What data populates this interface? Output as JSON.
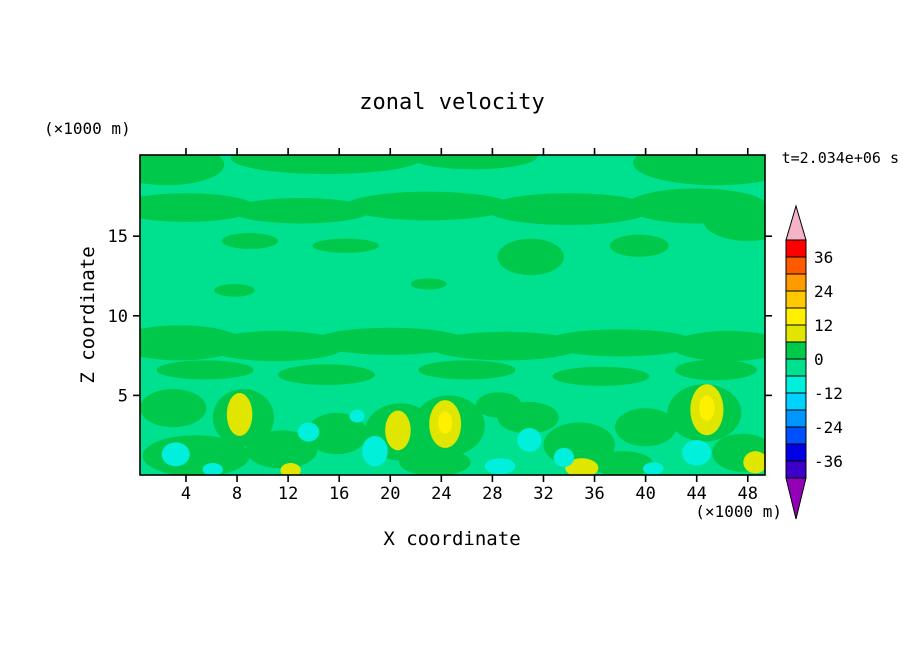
{
  "chart_data": {
    "type": "heatmap",
    "subtype": "filled-contour",
    "title": "zonal velocity",
    "time_label": "t=2.034e+06 s",
    "contour_interval": 6,
    "x_axis": {
      "label": "X coordinate",
      "unit": "(×1000 m)",
      "ticks": [
        4,
        8,
        12,
        16,
        20,
        24,
        28,
        32,
        36,
        40,
        44,
        48
      ],
      "range": [
        0.4,
        49.35
      ]
    },
    "z_axis": {
      "label": "Z coordinate",
      "unit": "(×1000 m)",
      "ticks": [
        5,
        10,
        15
      ],
      "range": [
        0,
        20.1
      ]
    },
    "colorbar": {
      "tick_labels": [
        "36",
        "24",
        "12",
        "0",
        "-12",
        "-24",
        "-36"
      ],
      "over_color": "#F5B3C8",
      "under_color": "#9400B8",
      "bands": [
        {
          "min": 36,
          "max": 42,
          "color": "#FF0000"
        },
        {
          "min": 30,
          "max": 36,
          "color": "#FF5A00"
        },
        {
          "min": 24,
          "max": 30,
          "color": "#FF9B00"
        },
        {
          "min": 18,
          "max": 24,
          "color": "#FFC800"
        },
        {
          "min": 12,
          "max": 18,
          "color": "#FFF000"
        },
        {
          "min": 6,
          "max": 12,
          "color": "#E1E600"
        },
        {
          "min": 0,
          "max": 6,
          "color": "#00C84B"
        },
        {
          "min": -6,
          "max": 0,
          "color": "#00E18F"
        },
        {
          "min": -12,
          "max": -6,
          "color": "#00F0DC"
        },
        {
          "min": -18,
          "max": -12,
          "color": "#00D2FF"
        },
        {
          "min": -24,
          "max": -18,
          "color": "#0096FF"
        },
        {
          "min": -30,
          "max": -24,
          "color": "#0050FF"
        },
        {
          "min": -36,
          "max": -30,
          "color": "#0000E6"
        },
        {
          "min": -42,
          "max": -36,
          "color": "#3C00C8"
        }
      ]
    },
    "field": {
      "background_level": -3,
      "features": [
        {
          "level": 3,
          "x": 2.5,
          "z": 19.5,
          "rx": 4.5,
          "rz": 1.3
        },
        {
          "level": 3,
          "x": 15.0,
          "z": 19.9,
          "rx": 7.5,
          "rz": 1.0
        },
        {
          "level": 3,
          "x": 26.5,
          "z": 20.0,
          "rx": 5.0,
          "rz": 0.8
        },
        {
          "level": 3,
          "x": 45.5,
          "z": 19.6,
          "rx": 6.5,
          "rz": 1.4
        },
        {
          "level": 3,
          "x": 4.0,
          "z": 16.8,
          "rx": 5.5,
          "rz": 0.9
        },
        {
          "level": 3,
          "x": 13.0,
          "z": 16.6,
          "rx": 5.5,
          "rz": 0.8
        },
        {
          "level": 3,
          "x": 23.0,
          "z": 16.9,
          "rx": 6.5,
          "rz": 0.9
        },
        {
          "level": 3,
          "x": 34.0,
          "z": 16.7,
          "rx": 6.5,
          "rz": 1.0
        },
        {
          "level": 3,
          "x": 44.0,
          "z": 16.9,
          "rx": 5.5,
          "rz": 1.1
        },
        {
          "level": 3,
          "x": 48.0,
          "z": 16.0,
          "rx": 3.5,
          "rz": 1.3
        },
        {
          "level": 3,
          "x": 9.0,
          "z": 14.7,
          "rx": 2.2,
          "rz": 0.5
        },
        {
          "level": 3,
          "x": 16.5,
          "z": 14.4,
          "rx": 2.6,
          "rz": 0.45
        },
        {
          "level": 3,
          "x": 31.0,
          "z": 13.7,
          "rx": 2.6,
          "rz": 1.15
        },
        {
          "level": 3,
          "x": 39.5,
          "z": 14.4,
          "rx": 2.3,
          "rz": 0.7
        },
        {
          "level": 3,
          "x": 7.8,
          "z": 11.6,
          "rx": 1.6,
          "rz": 0.4
        },
        {
          "level": 3,
          "x": 23.0,
          "z": 12.0,
          "rx": 1.4,
          "rz": 0.35
        },
        {
          "level": 3,
          "x": 3.5,
          "z": 8.3,
          "rx": 5.0,
          "rz": 1.1
        },
        {
          "level": 3,
          "x": 11.0,
          "z": 8.1,
          "rx": 5.5,
          "rz": 0.95
        },
        {
          "level": 3,
          "x": 20.0,
          "z": 8.4,
          "rx": 6.0,
          "rz": 0.85
        },
        {
          "level": 3,
          "x": 29.0,
          "z": 8.1,
          "rx": 6.0,
          "rz": 0.9
        },
        {
          "level": 3,
          "x": 38.0,
          "z": 8.3,
          "rx": 6.0,
          "rz": 0.85
        },
        {
          "level": 3,
          "x": 46.5,
          "z": 8.1,
          "rx": 4.5,
          "rz": 0.95
        },
        {
          "level": 3,
          "x": 5.5,
          "z": 6.6,
          "rx": 3.8,
          "rz": 0.6
        },
        {
          "level": 3,
          "x": 15.0,
          "z": 6.3,
          "rx": 3.8,
          "rz": 0.65
        },
        {
          "level": 3,
          "x": 26.0,
          "z": 6.6,
          "rx": 3.8,
          "rz": 0.6
        },
        {
          "level": 3,
          "x": 36.5,
          "z": 6.2,
          "rx": 3.8,
          "rz": 0.6
        },
        {
          "level": 3,
          "x": 45.5,
          "z": 6.6,
          "rx": 3.2,
          "rz": 0.65
        },
        {
          "level": 3,
          "x": 3.0,
          "z": 4.2,
          "rx": 2.6,
          "rz": 1.2
        },
        {
          "level": 3,
          "x": 8.5,
          "z": 3.6,
          "rx": 2.4,
          "rz": 1.8
        },
        {
          "level": 3,
          "x": 4.8,
          "z": 1.2,
          "rx": 4.2,
          "rz": 1.3
        },
        {
          "level": 3,
          "x": 11.5,
          "z": 1.6,
          "rx": 2.8,
          "rz": 1.2
        },
        {
          "level": 3,
          "x": 15.8,
          "z": 2.6,
          "rx": 2.4,
          "rz": 1.3
        },
        {
          "level": 3,
          "x": 20.8,
          "z": 2.7,
          "rx": 2.8,
          "rz": 1.8
        },
        {
          "level": 3,
          "x": 24.6,
          "z": 3.1,
          "rx": 2.8,
          "rz": 1.9
        },
        {
          "level": 3,
          "x": 23.5,
          "z": 0.8,
          "rx": 2.8,
          "rz": 0.85
        },
        {
          "level": 3,
          "x": 28.5,
          "z": 4.4,
          "rx": 1.8,
          "rz": 0.8
        },
        {
          "level": 3,
          "x": 30.8,
          "z": 3.6,
          "rx": 2.4,
          "rz": 1.0
        },
        {
          "level": 3,
          "x": 34.8,
          "z": 1.9,
          "rx": 2.8,
          "rz": 1.4
        },
        {
          "level": 3,
          "x": 38.2,
          "z": 0.7,
          "rx": 2.4,
          "rz": 0.8
        },
        {
          "level": 3,
          "x": 40.0,
          "z": 3.0,
          "rx": 2.4,
          "rz": 1.2
        },
        {
          "level": 3,
          "x": 44.6,
          "z": 3.9,
          "rx": 2.9,
          "rz": 1.8
        },
        {
          "level": 3,
          "x": 47.6,
          "z": 1.4,
          "rx": 2.4,
          "rz": 1.2
        },
        {
          "level": 9,
          "x": 8.2,
          "z": 3.8,
          "rx": 1.0,
          "rz": 1.35
        },
        {
          "level": 9,
          "x": 20.6,
          "z": 2.8,
          "rx": 1.0,
          "rz": 1.25
        },
        {
          "level": 9,
          "x": 24.3,
          "z": 3.2,
          "rx": 1.25,
          "rz": 1.5
        },
        {
          "level": 9,
          "x": 35.0,
          "z": 0.45,
          "rx": 1.3,
          "rz": 0.6
        },
        {
          "level": 9,
          "x": 44.8,
          "z": 4.1,
          "rx": 1.3,
          "rz": 1.6
        },
        {
          "level": 9,
          "x": 48.6,
          "z": 0.8,
          "rx": 0.95,
          "rz": 0.7
        },
        {
          "level": 9,
          "x": 12.2,
          "z": 0.3,
          "rx": 0.8,
          "rz": 0.45
        },
        {
          "level": 15,
          "x": 24.3,
          "z": 3.3,
          "rx": 0.55,
          "rz": 0.7
        },
        {
          "level": 15,
          "x": 44.8,
          "z": 4.2,
          "rx": 0.6,
          "rz": 0.8
        },
        {
          "level": -9,
          "x": 3.2,
          "z": 1.3,
          "rx": 1.1,
          "rz": 0.75
        },
        {
          "level": -9,
          "x": 6.1,
          "z": 0.35,
          "rx": 0.8,
          "rz": 0.4
        },
        {
          "level": -9,
          "x": 13.6,
          "z": 2.7,
          "rx": 0.85,
          "rz": 0.6
        },
        {
          "level": -9,
          "x": 17.4,
          "z": 3.7,
          "rx": 0.6,
          "rz": 0.4
        },
        {
          "level": -9,
          "x": 18.8,
          "z": 1.5,
          "rx": 1.0,
          "rz": 0.95
        },
        {
          "level": -9,
          "x": 28.6,
          "z": 0.55,
          "rx": 1.2,
          "rz": 0.5
        },
        {
          "level": -9,
          "x": 30.9,
          "z": 2.2,
          "rx": 0.95,
          "rz": 0.75
        },
        {
          "level": -9,
          "x": 33.6,
          "z": 1.1,
          "rx": 0.8,
          "rz": 0.6
        },
        {
          "level": -9,
          "x": 40.6,
          "z": 0.4,
          "rx": 0.8,
          "rz": 0.4
        },
        {
          "level": -9,
          "x": 44.0,
          "z": 1.4,
          "rx": 1.15,
          "rz": 0.8
        }
      ]
    }
  }
}
